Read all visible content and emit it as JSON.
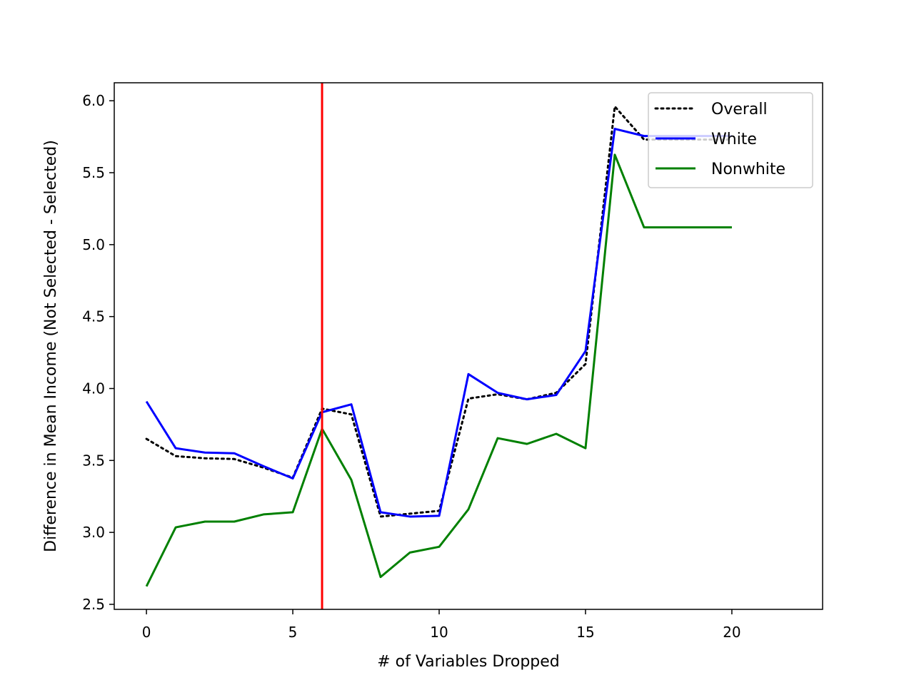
{
  "chart_data": {
    "type": "line",
    "xlabel": "# of Variables Dropped",
    "ylabel": "Difference in Mean Income (Not Selected - Selected)",
    "xlim": [
      -1.1,
      23.1
    ],
    "ylim": [
      2.465,
      6.125
    ],
    "xticks": [
      0,
      5,
      10,
      15,
      20
    ],
    "yticks": [
      2.5,
      3.0,
      3.5,
      4.0,
      4.5,
      5.0,
      5.5,
      6.0
    ],
    "xtick_labels": [
      "0",
      "5",
      "10",
      "15",
      "20"
    ],
    "ytick_labels": [
      "2.5",
      "3.0",
      "3.5",
      "4.0",
      "4.5",
      "5.0",
      "5.5",
      "6.0"
    ],
    "vline": {
      "x": 6,
      "color": "#ff0000"
    },
    "legend": {
      "position": "upper right"
    },
    "x": [
      0,
      1,
      2,
      3,
      4,
      5,
      6,
      7,
      8,
      9,
      10,
      11,
      12,
      13,
      14,
      15,
      16,
      17,
      18,
      19,
      20
    ],
    "series": [
      {
        "name": "Overall",
        "color": "#000000",
        "style": "dotted",
        "values": [
          3.65,
          3.53,
          3.515,
          3.51,
          3.45,
          3.38,
          3.86,
          3.82,
          3.11,
          3.13,
          3.15,
          3.93,
          3.96,
          3.925,
          3.97,
          4.17,
          5.96,
          5.73,
          5.73,
          5.73,
          5.73
        ]
      },
      {
        "name": "White",
        "color": "#0000ff",
        "style": "solid",
        "values": [
          3.91,
          3.585,
          3.555,
          3.55,
          3.46,
          3.375,
          3.835,
          3.89,
          3.14,
          3.11,
          3.115,
          4.1,
          3.97,
          3.925,
          3.955,
          4.26,
          5.805,
          5.755,
          5.755,
          5.755,
          5.755
        ]
      },
      {
        "name": "Nonwhite",
        "color": "#008000",
        "style": "solid",
        "values": [
          2.625,
          3.035,
          3.075,
          3.075,
          3.125,
          3.14,
          3.72,
          3.365,
          2.69,
          2.86,
          2.9,
          3.16,
          3.655,
          3.615,
          3.685,
          3.585,
          5.625,
          5.12,
          5.12,
          5.12,
          5.12
        ]
      }
    ]
  }
}
